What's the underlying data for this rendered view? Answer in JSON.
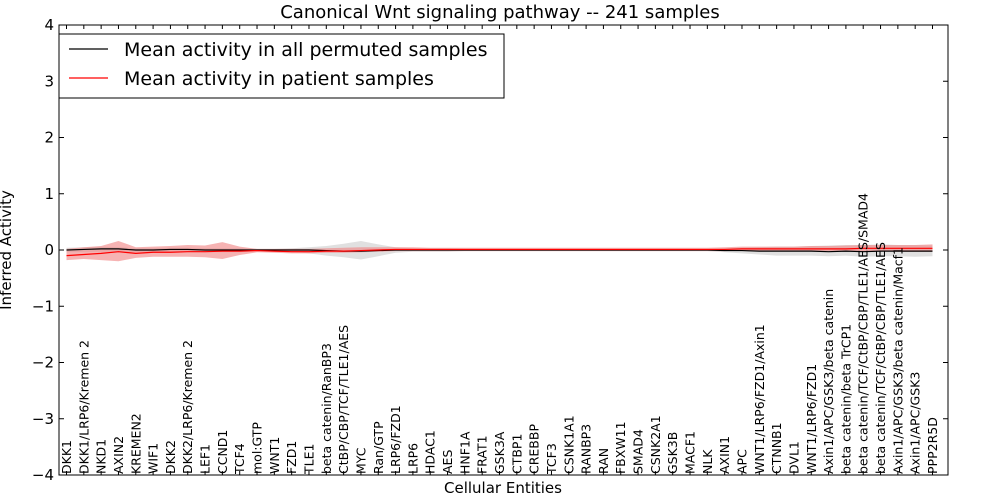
{
  "chart_data": {
    "type": "line",
    "title": "Canonical Wnt signaling pathway -- 241 samples",
    "xlabel": "Cellular Entities",
    "ylabel": "Inferred Activity",
    "ylim": [
      -4,
      4
    ],
    "yticks": [
      "−4",
      "−3",
      "−2",
      "−1",
      "0",
      "1",
      "2",
      "3",
      "4"
    ],
    "categories": [
      "DKK1",
      "DKK1/LRP6/Kremen 2",
      "NKD1",
      "AXIN2",
      "KREMEN2",
      "WIF1",
      "DKK2",
      "DKK2/LRP6/Kremen 2",
      "LEF1",
      "CCND1",
      "TCF4",
      "mol:GTP",
      "WNT1",
      "FZD1",
      "TLE1",
      "beta catenin/RanBP3",
      "CtBP/CBP/TCF/TLE1/AES",
      "MYC",
      "Ran/GTP",
      "LRP6/FZD1",
      "LRP6",
      "HDAC1",
      "AES",
      "HNF1A",
      "FRAT1",
      "GSK3A",
      "CTBP1",
      "CREBBP",
      "TCF3",
      "CSNK1A1",
      "RANBP3",
      "RAN",
      "FBXW11",
      "SMAD4",
      "CSNK2A1",
      "GSK3B",
      "MACF1",
      "NLK",
      "AXIN1",
      "APC",
      "WNT1/LRP6/FZD1/Axin1",
      "CTNNB1",
      "DVL1",
      "WNT1/LRP6/FZD1",
      "Axin1/APC/GSK3/beta catenin",
      "beta catenin/beta TrCP1",
      "beta catenin/TCF/CtBP/CBP/TLE1/AES/SMAD4",
      "beta catenin/TCF/CtBP/CBP/TLE1/AES",
      "Axin1/APC/GSK3/beta catenin/Macf1",
      "Axin1/APC/GSK3",
      "PPP2R5D"
    ],
    "series": [
      {
        "name": "Mean activity in all permuted samples",
        "color": "#000000",
        "band_color": "#bbbbbb",
        "values": [
          0,
          0.01,
          0.02,
          0.02,
          0,
          0,
          0.01,
          0.01,
          0,
          0,
          0,
          0,
          0,
          0,
          0,
          -0.01,
          -0.02,
          -0.02,
          -0.01,
          0,
          0,
          0,
          0,
          0,
          0,
          0,
          0,
          0,
          0,
          0,
          0,
          0,
          0,
          0,
          0,
          0,
          0,
          0,
          -0.01,
          -0.01,
          -0.02,
          -0.02,
          -0.02,
          -0.02,
          -0.03,
          -0.02,
          -0.03,
          -0.02,
          -0.02,
          -0.02,
          -0.02
        ],
        "upper": [
          0.04,
          0.05,
          0.06,
          0.05,
          0.03,
          0.03,
          0.04,
          0.04,
          0.03,
          0.03,
          0.03,
          0.02,
          0.02,
          0.03,
          0.05,
          0.07,
          0.11,
          0.16,
          0.1,
          0.05,
          0.03,
          0.03,
          0.03,
          0.02,
          0.02,
          0.02,
          0.02,
          0.02,
          0.02,
          0.02,
          0.02,
          0.02,
          0.02,
          0.02,
          0.02,
          0.02,
          0.02,
          0.02,
          0.03,
          0.04,
          0.05,
          0.06,
          0.06,
          0.07,
          0.08,
          0.09,
          0.09,
          0.1,
          0.09,
          0.09,
          0.08
        ],
        "lower": [
          -0.04,
          -0.04,
          -0.03,
          -0.03,
          -0.04,
          -0.04,
          -0.03,
          -0.03,
          -0.04,
          -0.04,
          -0.04,
          -0.02,
          -0.02,
          -0.03,
          -0.06,
          -0.1,
          -0.13,
          -0.17,
          -0.11,
          -0.05,
          -0.03,
          -0.03,
          -0.03,
          -0.02,
          -0.02,
          -0.02,
          -0.02,
          -0.02,
          -0.02,
          -0.02,
          -0.02,
          -0.02,
          -0.02,
          -0.02,
          -0.02,
          -0.02,
          -0.02,
          -0.02,
          -0.04,
          -0.06,
          -0.08,
          -0.1,
          -0.1,
          -0.1,
          -0.11,
          -0.1,
          -0.12,
          -0.11,
          -0.11,
          -0.12,
          -0.11
        ]
      },
      {
        "name": "Mean activity in patient samples",
        "color": "#ff0000",
        "band_color": "#f08080",
        "values": [
          -0.1,
          -0.08,
          -0.06,
          -0.03,
          -0.06,
          -0.04,
          -0.04,
          -0.03,
          -0.03,
          -0.02,
          -0.02,
          -0.01,
          -0.02,
          -0.03,
          -0.03,
          -0.02,
          -0.02,
          -0.01,
          0,
          0.01,
          0.01,
          0.01,
          0.01,
          0.01,
          0.01,
          0.01,
          0.01,
          0.01,
          0.01,
          0.01,
          0.01,
          0.01,
          0.01,
          0.01,
          0.01,
          0.01,
          0.01,
          0.01,
          0.01,
          0.02,
          0.02,
          0.02,
          0.02,
          0.02,
          0.02,
          0.02,
          0.03,
          0.03,
          0.03,
          0.03,
          0.03
        ],
        "upper": [
          0.02,
          0.05,
          0.07,
          0.16,
          0.05,
          0.06,
          0.07,
          0.09,
          0.08,
          0.14,
          0.06,
          0.02,
          0.02,
          0.02,
          0.02,
          0.03,
          0.04,
          0.05,
          0.05,
          0.05,
          0.05,
          0.04,
          0.04,
          0.04,
          0.04,
          0.04,
          0.04,
          0.04,
          0.04,
          0.04,
          0.04,
          0.04,
          0.04,
          0.04,
          0.04,
          0.04,
          0.04,
          0.04,
          0.05,
          0.06,
          0.06,
          0.06,
          0.06,
          0.07,
          0.07,
          0.08,
          0.09,
          0.09,
          0.09,
          0.09,
          0.1
        ],
        "lower": [
          -0.18,
          -0.16,
          -0.18,
          -0.2,
          -0.14,
          -0.12,
          -0.12,
          -0.12,
          -0.13,
          -0.16,
          -0.09,
          -0.04,
          -0.05,
          -0.06,
          -0.06,
          -0.05,
          -0.05,
          -0.04,
          -0.03,
          -0.02,
          -0.02,
          -0.02,
          -0.02,
          -0.02,
          -0.02,
          -0.02,
          -0.02,
          -0.02,
          -0.02,
          -0.02,
          -0.02,
          -0.02,
          -0.02,
          -0.02,
          -0.02,
          -0.02,
          -0.02,
          -0.02,
          -0.02,
          -0.01,
          -0.01,
          -0.01,
          -0.01,
          -0.02,
          -0.02,
          -0.02,
          -0.03,
          -0.02,
          -0.03,
          -0.03,
          -0.03
        ]
      }
    ],
    "legend": {
      "position": "top-left",
      "entries": [
        "Mean activity in all permuted samples",
        "Mean activity in patient samples"
      ]
    }
  }
}
